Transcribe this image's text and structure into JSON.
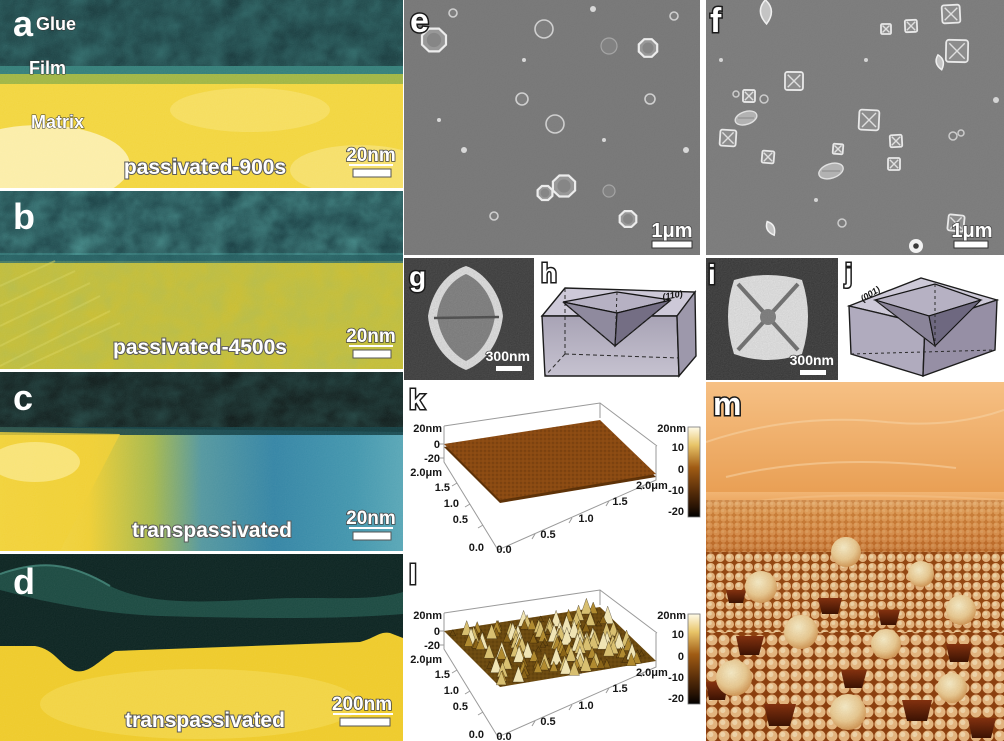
{
  "panels": {
    "a": {
      "letter": "a",
      "region_labels": [
        "Glue",
        "Film",
        "Matrix"
      ],
      "caption": "passivated-900s",
      "scale_bar": "20nm"
    },
    "b": {
      "letter": "b",
      "caption": "passivated-4500s",
      "scale_bar": "20nm"
    },
    "c": {
      "letter": "c",
      "caption": "transpassivated",
      "scale_bar": "20nm"
    },
    "d": {
      "letter": "d",
      "caption": "transpassivated",
      "scale_bar": "200nm"
    },
    "e": {
      "letter": "e",
      "scale_bar": "1μm"
    },
    "f": {
      "letter": "f",
      "scale_bar": "1μm"
    },
    "g": {
      "letter": "g",
      "scale_bar": "300nm"
    },
    "h": {
      "letter": "h",
      "facet_label": "(110)"
    },
    "i": {
      "letter": "i",
      "scale_bar": "300nm"
    },
    "j": {
      "letter": "j",
      "facet_label": "(001)"
    },
    "k": {
      "letter": "k"
    },
    "l": {
      "letter": "l"
    },
    "m": {
      "letter": "m"
    }
  },
  "chart_data": [
    {
      "panel": "k",
      "type": "heatmap",
      "title": "AFM 3D topography - flat passivated surface",
      "surface_character": "flat, roughness within about ±2 nm",
      "x": {
        "label": "μm",
        "range": [
          0,
          2
        ],
        "ticks": [
          "0.0",
          "0.5",
          "1.0",
          "1.5",
          "2.0μm"
        ]
      },
      "y": {
        "label": "μm",
        "range": [
          0,
          2
        ],
        "ticks": [
          "2.0μm",
          "1.5",
          "1.0",
          "0.5",
          "0.0"
        ]
      },
      "z": {
        "label": "nm",
        "range": [
          -20,
          20
        ],
        "ticks": [
          "20nm",
          "0",
          "-20"
        ]
      },
      "colorbar": {
        "range": [
          -20,
          20
        ],
        "ticks": [
          "20nm",
          "10",
          "0",
          "-10",
          "-20"
        ],
        "colors": [
          "#fffbe8",
          "#e8c468",
          "#a05c14",
          "#5c300a",
          "#000000"
        ]
      }
    },
    {
      "panel": "l",
      "type": "heatmap",
      "title": "AFM 3D topography - rough transpassivated surface",
      "surface_character": "rough, dense peaks up to about 20 nm",
      "x": {
        "label": "μm",
        "range": [
          0,
          2
        ],
        "ticks": [
          "0.0",
          "0.5",
          "1.0",
          "1.5",
          "2.0μm"
        ]
      },
      "y": {
        "label": "μm",
        "range": [
          0,
          2
        ],
        "ticks": [
          "2.0μm",
          "1.5",
          "1.0",
          "0.5",
          "0.0"
        ]
      },
      "z": {
        "label": "nm",
        "range": [
          -20,
          20
        ],
        "ticks": [
          "20nm",
          "0",
          "-20"
        ]
      },
      "colorbar": {
        "range": [
          -20,
          20
        ],
        "ticks": [
          "20nm",
          "10",
          "0",
          "-10",
          "-20"
        ],
        "colors": [
          "#fffbe8",
          "#e8c468",
          "#a05c14",
          "#5c300a",
          "#000000"
        ]
      }
    }
  ],
  "colors": {
    "glue_dark_teal": "#0a2f2c",
    "film_teal": "#2c7a74",
    "matrix_yellow": "#f2d437",
    "sem_gray": "#747474",
    "afm_brown": "#8a4a12",
    "atom_orange": "#e8b37c",
    "pit_dark": "#6e2408"
  }
}
